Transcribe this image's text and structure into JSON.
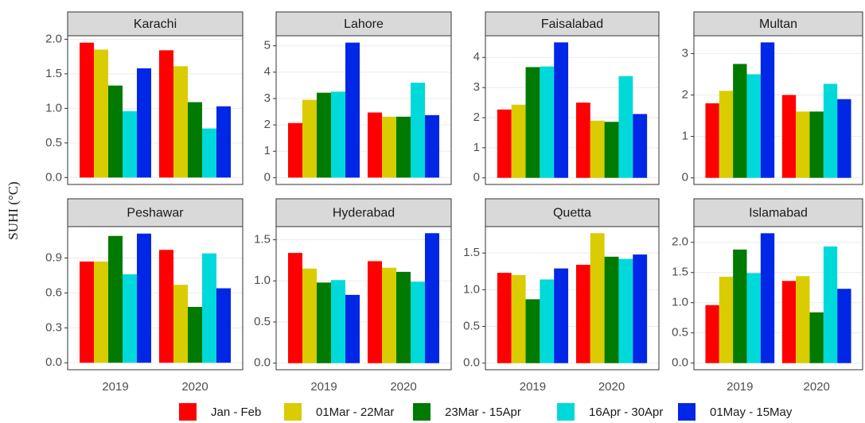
{
  "chart_data": {
    "type": "bar",
    "y_label": "SUHI (°C)",
    "categories": [
      "2019",
      "2020"
    ],
    "grid": true,
    "series": [
      {
        "name": "Jan - Feb",
        "color": "#ff0000"
      },
      {
        "name": "01Mar - 22Mar",
        "color": "#d9cc00"
      },
      {
        "name": "23Mar - 15Apr",
        "color": "#007a00"
      },
      {
        "name": "16Apr - 30Apr",
        "color": "#00d9d9"
      },
      {
        "name": "01May - 15May",
        "color": "#0026e6"
      }
    ],
    "panels": [
      {
        "title": "Karachi",
        "ylim": [
          -0.1,
          2.05
        ],
        "yticks": [
          {
            "value": 0,
            "label": "0.0"
          },
          {
            "value": 0.5,
            "label": "0.5"
          },
          {
            "value": 1,
            "label": "1.0"
          },
          {
            "value": 1.5,
            "label": "1.5"
          },
          {
            "value": 2,
            "label": "2.0"
          }
        ],
        "values": [
          [
            1.95,
            1.84
          ],
          [
            1.85,
            1.61
          ],
          [
            1.33,
            1.09
          ],
          [
            0.96,
            0.71
          ],
          [
            1.58,
            1.03
          ]
        ]
      },
      {
        "title": "Lahore",
        "ylim": [
          -0.26,
          5.38
        ],
        "yticks": [
          0,
          1,
          2,
          3,
          4,
          5
        ],
        "values": [
          [
            2.07,
            2.47
          ],
          [
            2.95,
            2.31
          ],
          [
            3.22,
            2.31
          ],
          [
            3.26,
            3.6
          ],
          [
            5.12,
            2.37
          ]
        ]
      },
      {
        "title": "Faisalabad",
        "ylim": [
          -0.22,
          4.72
        ],
        "yticks": [
          0,
          1,
          2,
          3,
          4
        ],
        "values": [
          [
            2.27,
            2.5
          ],
          [
            2.43,
            1.9
          ],
          [
            3.68,
            1.86
          ],
          [
            3.7,
            3.38
          ],
          [
            4.5,
            2.12
          ]
        ]
      },
      {
        "title": "Multan",
        "ylim": [
          -0.16,
          3.43
        ],
        "yticks": [
          0,
          1,
          2,
          3
        ],
        "values": [
          [
            1.8,
            2.0
          ],
          [
            2.1,
            1.6
          ],
          [
            2.75,
            1.6
          ],
          [
            2.5,
            2.27
          ],
          [
            3.27,
            1.9
          ]
        ]
      },
      {
        "title": "Peshawar",
        "ylim": [
          -0.06,
          1.17
        ],
        "yticks": [
          {
            "value": 0,
            "label": "0.0"
          },
          0.3,
          0.6,
          0.9
        ],
        "values": [
          [
            0.87,
            0.97
          ],
          [
            0.87,
            0.67
          ],
          [
            1.09,
            0.48
          ],
          [
            0.76,
            0.94
          ],
          [
            1.11,
            0.64
          ]
        ]
      },
      {
        "title": "Hyderabad",
        "ylim": [
          -0.08,
          1.66
        ],
        "yticks": [
          {
            "value": 0,
            "label": "0.0"
          },
          0.5,
          {
            "value": 1,
            "label": "1.0"
          },
          1.5
        ],
        "values": [
          [
            1.34,
            1.24
          ],
          [
            1.15,
            1.16
          ],
          [
            0.98,
            1.11
          ],
          [
            1.01,
            0.99
          ],
          [
            0.83,
            1.58
          ]
        ]
      },
      {
        "title": "Quetta",
        "ylim": [
          -0.09,
          1.86
        ],
        "yticks": [
          {
            "value": 0,
            "label": "0.0"
          },
          0.5,
          {
            "value": 1,
            "label": "1.0"
          },
          1.5
        ],
        "values": [
          [
            1.23,
            1.34
          ],
          [
            1.2,
            1.77
          ],
          [
            0.87,
            1.45
          ],
          [
            1.14,
            1.42
          ],
          [
            1.29,
            1.48
          ]
        ]
      },
      {
        "title": "Islamabad",
        "ylim": [
          -0.11,
          2.26
        ],
        "yticks": [
          {
            "value": 0,
            "label": "0.0"
          },
          0.5,
          {
            "value": 1,
            "label": "1.0"
          },
          1.5,
          {
            "value": 2,
            "label": "2.0"
          }
        ],
        "values": [
          [
            0.96,
            1.36
          ],
          [
            1.43,
            1.44
          ],
          [
            1.88,
            0.84
          ],
          [
            1.49,
            1.93
          ],
          [
            2.15,
            1.23
          ]
        ]
      }
    ]
  }
}
